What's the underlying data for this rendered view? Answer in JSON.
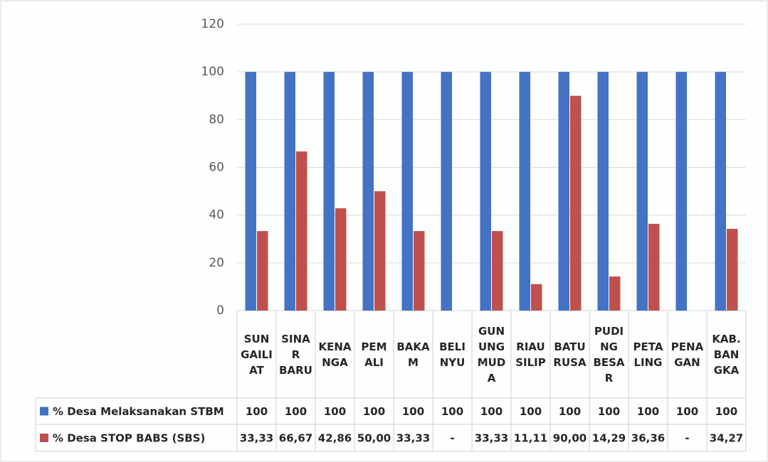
{
  "chart_data": {
    "type": "bar",
    "categories": [
      "SUN\nGAILI\nAT",
      "SINA\nR\nBARU",
      "KENA\nNGA",
      "PEM\nALI",
      "BAKA\nM",
      "BELI\nNYU",
      "GUN\nUNG\nMUD\nA",
      "RIAU\nSILIP",
      "BATU\nRUSA",
      "PUDI\nNG\nBESA\nR",
      "PETA\nLING",
      "PENA\nGAN",
      "KAB.\nBAN\nGKA"
    ],
    "series": [
      {
        "name": "% Desa Melaksanakan STBM",
        "color": "#4472c4",
        "values": [
          100,
          100,
          100,
          100,
          100,
          100,
          100,
          100,
          100,
          100,
          100,
          100,
          100
        ]
      },
      {
        "name": "% Desa STOP BABS (SBS)",
        "color": "#c0504d",
        "values": [
          33.33,
          66.67,
          42.86,
          50,
          33.33,
          null,
          33.33,
          11.11,
          90,
          14.29,
          36.36,
          null,
          34.27
        ],
        "value_labels": [
          "33,33",
          "66,67",
          "42,86",
          "50,00",
          "33,33",
          "-",
          "33,33",
          "11,11",
          "90,00",
          "14,29",
          "36,36",
          "-",
          "34,27"
        ]
      }
    ],
    "ylim": [
      0,
      120
    ],
    "yticks": [
      0,
      20,
      40,
      60,
      80,
      100,
      120
    ],
    "grid": true
  }
}
